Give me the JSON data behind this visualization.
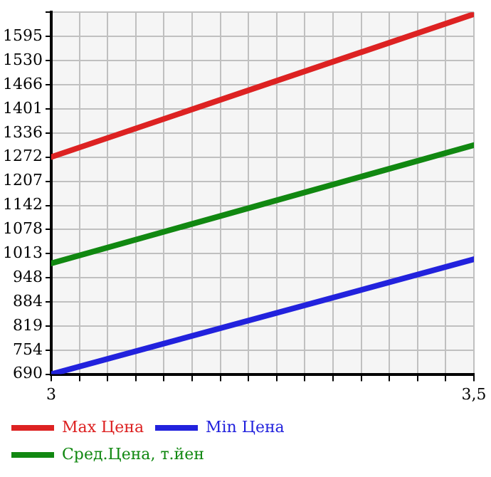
{
  "chart_data": {
    "type": "line",
    "x": [
      3,
      3.5
    ],
    "series": [
      {
        "name": "Max Цена",
        "color": "#dd2222",
        "values": [
          1272,
          1655
        ]
      },
      {
        "name": "Min Цена",
        "color": "#2222dd",
        "values": [
          690,
          998
        ]
      },
      {
        "name": "Сред.Цена, т.йен",
        "color": "#118811",
        "values": [
          987,
          1304
        ]
      }
    ],
    "xlim": [
      3,
      3.5
    ],
    "xticks": [
      {
        "value": 3,
        "label": "3"
      },
      {
        "value": 3.0333,
        "label": null
      },
      {
        "value": 3.0667,
        "label": null
      },
      {
        "value": 3.1,
        "label": null
      },
      {
        "value": 3.1333,
        "label": null
      },
      {
        "value": 3.1667,
        "label": null
      },
      {
        "value": 3.2,
        "label": null
      },
      {
        "value": 3.2333,
        "label": null
      },
      {
        "value": 3.2667,
        "label": null
      },
      {
        "value": 3.3,
        "label": null
      },
      {
        "value": 3.3333,
        "label": null
      },
      {
        "value": 3.3667,
        "label": null
      },
      {
        "value": 3.4,
        "label": null
      },
      {
        "value": 3.4333,
        "label": null
      },
      {
        "value": 3.4667,
        "label": null
      },
      {
        "value": 3.5,
        "label": "3,5"
      }
    ],
    "ylim": [
      690,
      1660
    ],
    "yticks": [
      690,
      754,
      819,
      884,
      948,
      1013,
      1078,
      1142,
      1207,
      1272,
      1336,
      1401,
      1466,
      1530,
      1595
    ],
    "grid": true,
    "legend": "bottom",
    "marker": "none",
    "line_style": "solid"
  }
}
